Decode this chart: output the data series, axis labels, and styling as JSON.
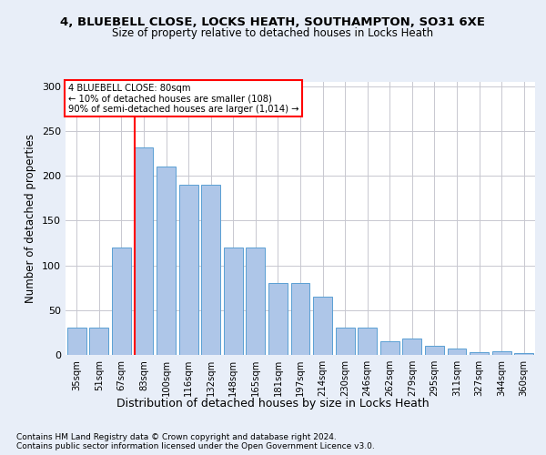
{
  "title1": "4, BLUEBELL CLOSE, LOCKS HEATH, SOUTHAMPTON, SO31 6XE",
  "title2": "Size of property relative to detached houses in Locks Heath",
  "xlabel": "Distribution of detached houses by size in Locks Heath",
  "ylabel": "Number of detached properties",
  "footnote1": "Contains HM Land Registry data © Crown copyright and database right 2024.",
  "footnote2": "Contains public sector information licensed under the Open Government Licence v3.0.",
  "bar_labels": [
    "35sqm",
    "51sqm",
    "67sqm",
    "83sqm",
    "100sqm",
    "116sqm",
    "132sqm",
    "148sqm",
    "165sqm",
    "181sqm",
    "197sqm",
    "214sqm",
    "230sqm",
    "246sqm",
    "262sqm",
    "279sqm",
    "295sqm",
    "311sqm",
    "327sqm",
    "344sqm",
    "360sqm"
  ],
  "bar_values": [
    30,
    30,
    120,
    232,
    210,
    190,
    190,
    120,
    120,
    80,
    80,
    65,
    30,
    30,
    15,
    18,
    10,
    7,
    3,
    4,
    2
  ],
  "bar_color": "#aec6e8",
  "bar_edge_color": "#5a9fd4",
  "vline_color": "red",
  "annotation_line1": "4 BLUEBELL CLOSE: 80sqm",
  "annotation_line2": "← 10% of detached houses are smaller (108)",
  "annotation_line3": "90% of semi-detached houses are larger (1,014) →",
  "annotation_box_color": "white",
  "annotation_box_edge": "red",
  "ylim": [
    0,
    305
  ],
  "yticks": [
    0,
    50,
    100,
    150,
    200,
    250,
    300
  ],
  "bg_color": "#e8eef8",
  "plot_bg": "#ffffff",
  "grid_color": "#c8c8d0"
}
